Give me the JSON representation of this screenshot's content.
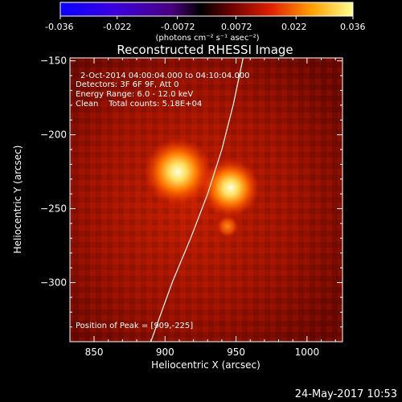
{
  "colorbar": {
    "tick_labels": [
      "-0.036",
      "-0.022",
      "-0.0072",
      "0.0072",
      "0.022",
      "0.036"
    ],
    "unit_label": "(photons cm⁻² s⁻¹ asec⁻²)",
    "range": [
      -0.036,
      0.036
    ]
  },
  "title": "Reconstructed RHESSI Image",
  "annotations": {
    "line1": "2-Oct-2014 04:00:04.000 to 04:10:04.000",
    "line2": "Detectors: 3F 6F 9F, Att 0",
    "line3": "Energy Range: 6.0 - 12.0 keV",
    "line4": "Clean    Total counts: 5.18E+04",
    "peak": "Position of Peak = [909,-225]"
  },
  "date_stamp": "24-May-2017 10:53",
  "chart_data": {
    "type": "heatmap",
    "title": "Reconstructed RHESSI Image",
    "xlabel": "Heliocentric X (arcsec)",
    "ylabel": "Heliocentric Y (arcsec)",
    "xlim": [
      833,
      1025
    ],
    "ylim": [
      -340,
      -148
    ],
    "x_ticks": [
      850,
      900,
      950,
      1000
    ],
    "y_ticks": [
      -150,
      -200,
      -250,
      -300
    ],
    "x_tick_labels": [
      "850",
      "900",
      "950",
      "1000"
    ],
    "y_tick_labels": [
      "−150",
      "−200",
      "−250",
      "−300"
    ],
    "colormap": "rhessi-hot",
    "sources": [
      {
        "x": 909,
        "y": -225,
        "peak_intensity": 0.036
      },
      {
        "x": 946,
        "y": -236,
        "peak_intensity": 0.03
      },
      {
        "x": 944,
        "y": -262,
        "peak_intensity": 0.016
      }
    ],
    "limb_curve": [
      [
        890,
        -340
      ],
      [
        905,
        -300
      ],
      [
        918,
        -270
      ],
      [
        930,
        -240
      ],
      [
        940,
        -210
      ],
      [
        948,
        -180
      ],
      [
        955,
        -148
      ]
    ]
  }
}
